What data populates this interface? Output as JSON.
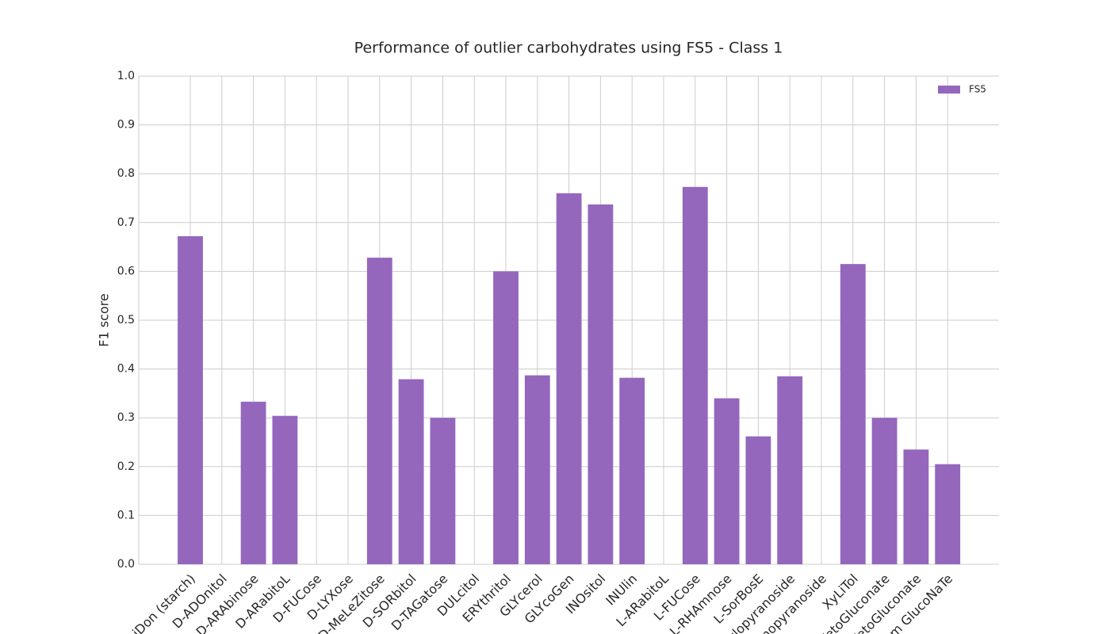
{
  "chart_data": {
    "type": "bar",
    "title": "Performance of outlier carbohydrates using FS5 - Class 1",
    "y_label": "F1 score",
    "categories": [
      "miDon (starch)",
      "D-ADOnitol",
      "D-ARAbinose",
      "D-ARabitoL",
      "D-FUCose",
      "D-LYXose",
      "D-MeLeZitose",
      "D-SORbitol",
      "D-TAGatose",
      "DULcitol",
      "ERYthritol",
      "GLYcerol",
      "GLYcoGen",
      "INOsitol",
      "INUlin",
      "L-ARabitoL",
      "L-FUCose",
      "L-RHAmnose",
      "L-SorBosE",
      "xylopyranoside",
      "nopyranoside",
      "XyLiTol",
      "KetoGluconate",
      "KetoGluconate",
      "um GlucoNaTe"
    ],
    "series": [
      {
        "name": "FS5",
        "color": "#9467bd",
        "values": [
          0.672,
          0,
          0.333,
          0.304,
          0,
          0,
          0.628,
          0.379,
          0.3,
          0,
          0.6,
          0.387,
          0.76,
          0.737,
          0.382,
          0,
          0.773,
          0.34,
          0.262,
          0.385,
          0,
          0.615,
          0.3,
          0.235,
          0.205
        ]
      }
    ],
    "ylim": [
      0,
      1.0
    ],
    "yticks": [
      {
        "value": 0,
        "label": "0.0"
      },
      0.1,
      0.2,
      0.3,
      0.4,
      0.5,
      0.6,
      0.7,
      0.8,
      0.9,
      {
        "value": 1,
        "label": "1.0"
      }
    ],
    "grid": true,
    "legend": "upper right"
  }
}
